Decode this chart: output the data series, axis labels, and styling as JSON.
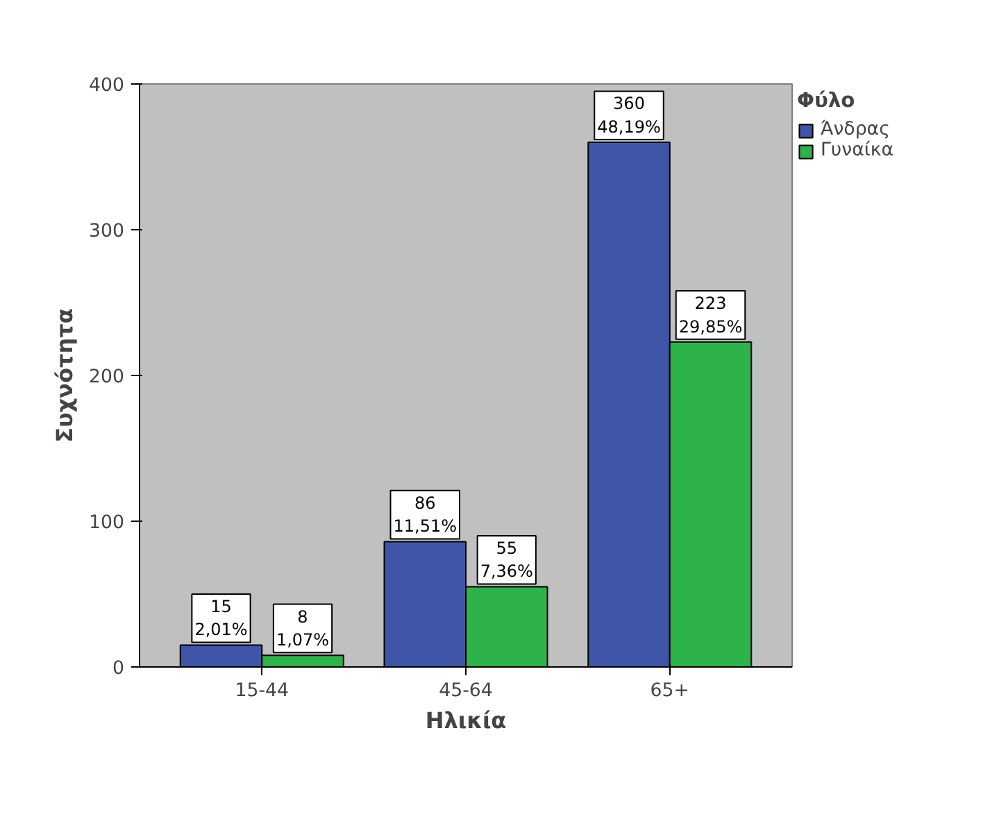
{
  "chart_data": {
    "type": "bar",
    "xlabel": "Ηλικία",
    "ylabel": "Συχνότητα",
    "legend_title": "Φύλο",
    "categories": [
      "15-44",
      "45-64",
      "65+"
    ],
    "series": [
      {
        "name": "Άνδρας",
        "color": "#3f55a8",
        "values": [
          15,
          86,
          360
        ],
        "value_labels": [
          "15\n2,01%",
          "86\n11,51%",
          "360\n48,19%"
        ]
      },
      {
        "name": "Γυναίκα",
        "color": "#2db34a",
        "values": [
          8,
          55,
          223
        ],
        "value_labels": [
          "8\n1,07%",
          "55\n7,36%",
          "223\n29,85%"
        ]
      }
    ],
    "ylim": [
      0,
      400
    ],
    "yticks": [
      0,
      100,
      200,
      300,
      400
    ],
    "grid": false,
    "legend": "top right"
  }
}
